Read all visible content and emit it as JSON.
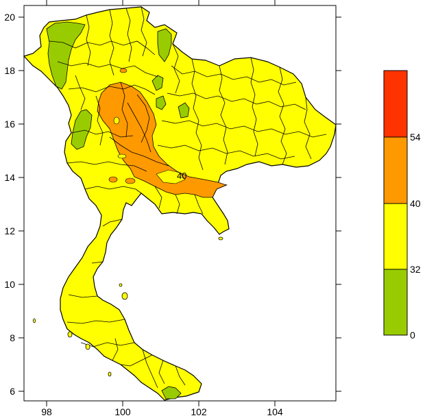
{
  "map": {
    "x_ticks": [
      "98",
      "100",
      "102",
      "104"
    ],
    "y_ticks": [
      "20",
      "18",
      "16",
      "14",
      "12",
      "10",
      "8",
      "6"
    ],
    "contour_label": "40",
    "x_range": [
      97.3,
      105.6
    ],
    "y_range": [
      5.7,
      20.4
    ]
  },
  "legend": {
    "levels": [
      "0",
      "32",
      "40",
      "54"
    ],
    "bands": [
      {
        "from": 0,
        "to": 32,
        "color": "#99cc00"
      },
      {
        "from": 32,
        "to": 40,
        "color": "#ffff00"
      },
      {
        "from": 40,
        "to": 54,
        "color": "#ff9900"
      },
      {
        "from": 54,
        "to": 70,
        "color": "#ff3300"
      }
    ]
  },
  "colors": {
    "green": "#99cc00",
    "yellow": "#ffff00",
    "orange": "#ff9900",
    "red": "#ff3300",
    "border": "#000000"
  }
}
